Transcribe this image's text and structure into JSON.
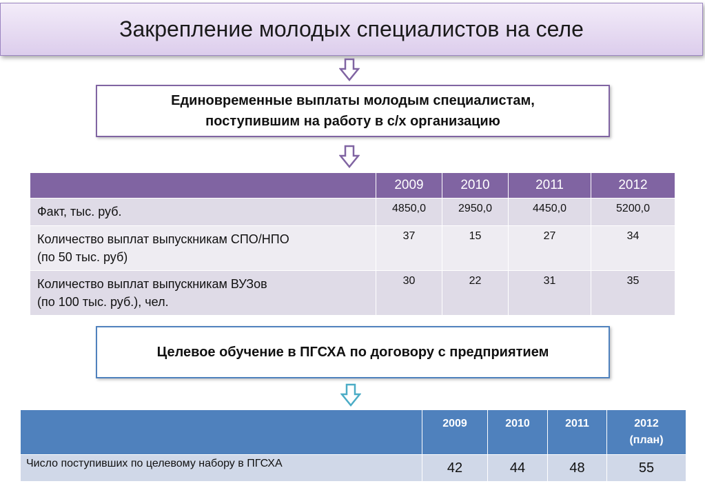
{
  "title": "Закрепление молодых специалистов на селе",
  "box1": {
    "line1": "Единовременные выплаты молодым специалистам,",
    "line2": "поступившим на работу в с/х организацию"
  },
  "table1": {
    "header": [
      "",
      "2009",
      "2010",
      "2011",
      "2012"
    ],
    "rows": [
      {
        "label_line1": "Факт, тыс. руб.",
        "label_line2": "",
        "values": [
          "4850,0",
          "2950,0",
          "4450,0",
          "5200,0"
        ]
      },
      {
        "label_line1": "Количество выплат выпускникам СПО/НПО",
        "label_line2": "(по 50 тыс. руб)",
        "values": [
          "37",
          "15",
          "27",
          "34"
        ]
      },
      {
        "label_line1": "Количество выплат выпускникам ВУЗов",
        "label_line2": "(по 100 тыс. руб.), чел.",
        "values": [
          "30",
          "22",
          "31",
          "35"
        ]
      }
    ]
  },
  "box2": {
    "text": "Целевое обучение в ПГСХА по договору с предприятием"
  },
  "table2": {
    "header": [
      "",
      "2009",
      "2010",
      "2011",
      "2012",
      "(план)"
    ],
    "row": {
      "label": "Число поступивших по целевому набору в ПГСХА",
      "values": [
        "42",
        "44",
        "48",
        "55"
      ]
    }
  },
  "colors": {
    "purple_accent": "#8064a2",
    "blue_accent": "#4f81bd"
  }
}
